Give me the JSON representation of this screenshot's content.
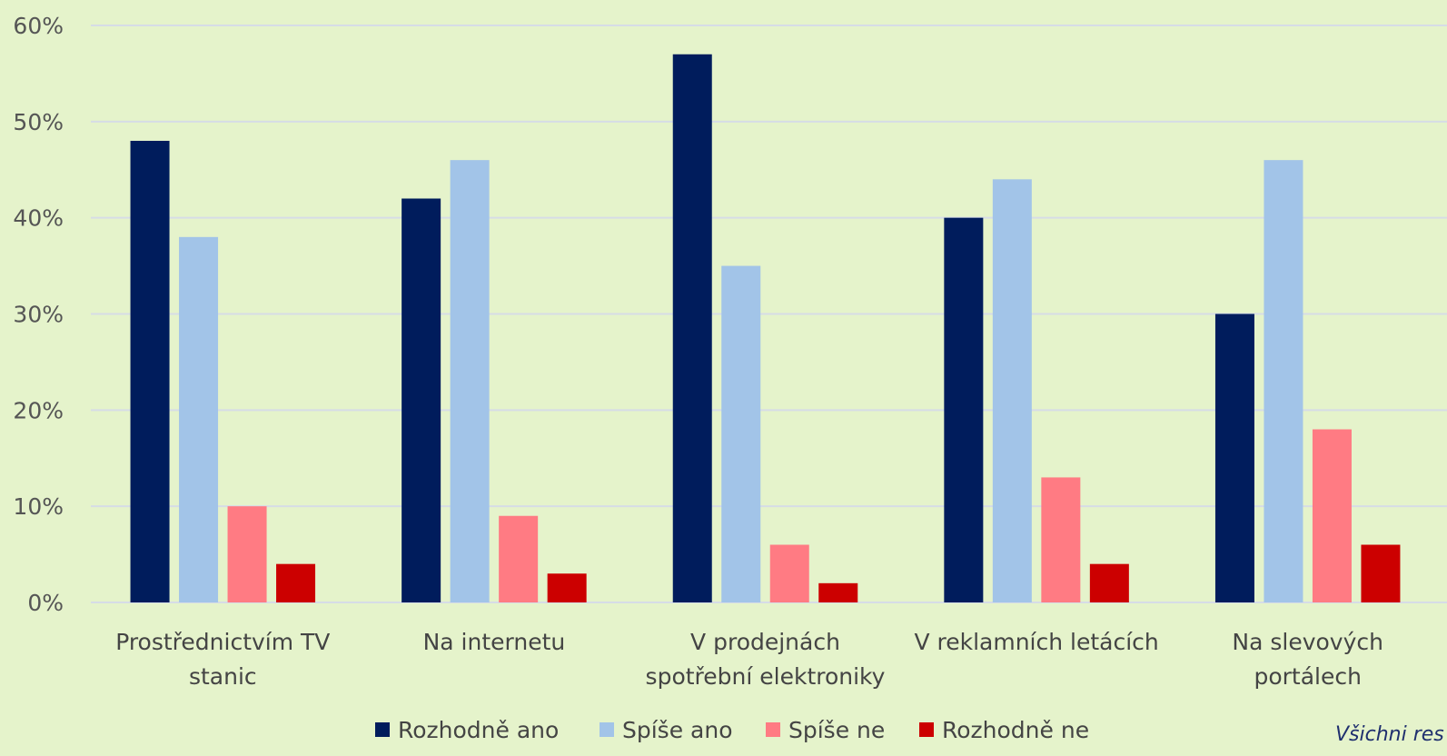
{
  "chart_data": {
    "type": "bar",
    "categories": [
      [
        "Prostřednictvím TV",
        "stanic"
      ],
      [
        "Na internetu"
      ],
      [
        "V prodejnách",
        "spotřební elektroniky"
      ],
      [
        "V reklamních letácích"
      ],
      [
        "Na slevových",
        "portálech"
      ]
    ],
    "series": [
      {
        "name": "Rozhodně ano",
        "color": "#001c5c",
        "values": [
          48,
          42,
          57,
          40,
          30
        ]
      },
      {
        "name": "Spíše ano",
        "color": "#a2c4e8",
        "values": [
          38,
          46,
          35,
          44,
          46
        ]
      },
      {
        "name": "Spíše ne",
        "color": "#ff7b83",
        "values": [
          10,
          9,
          6,
          13,
          18
        ]
      },
      {
        "name": "Rozhodně ne",
        "color": "#cc0000",
        "values": [
          4,
          3,
          2,
          4,
          6
        ]
      }
    ],
    "ylim": [
      0,
      60
    ],
    "yticks": [
      0,
      10,
      20,
      30,
      40,
      50,
      60
    ],
    "ytick_suffix": "%",
    "grid": true,
    "legend_position": "bottom",
    "background": "#e5f3cb"
  },
  "footnote": "Všichni res"
}
